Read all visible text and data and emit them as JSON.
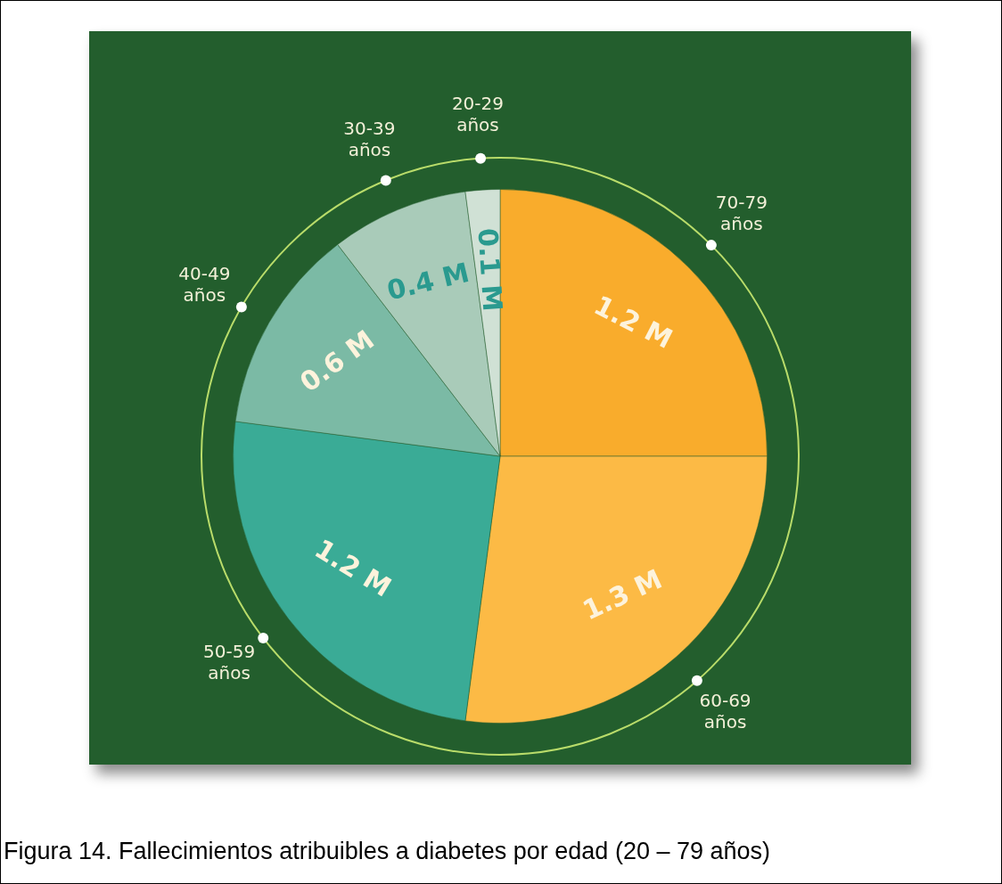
{
  "chart_data": {
    "type": "pie",
    "categories": [
      "70-79 años",
      "60-69 años",
      "50-59 años",
      "40-49 años",
      "30-39 años",
      "20-29 años"
    ],
    "values": [
      1.2,
      1.3,
      1.2,
      0.6,
      0.4,
      0.1
    ],
    "value_labels": [
      "1.2 M",
      "1.3 M",
      "1.2 M",
      "0.6 M",
      "0.4 M",
      "0.1 M"
    ],
    "colors": [
      "#f9ac2c",
      "#fcba45",
      "#3aab96",
      "#7bbaa5",
      "#a9cbb9",
      "#d0e1d5"
    ],
    "legend": false,
    "annotations": [
      "Figura 14. Fallecimientos atribuibles a diabetes por edad (20 – 79 años)"
    ]
  }
}
